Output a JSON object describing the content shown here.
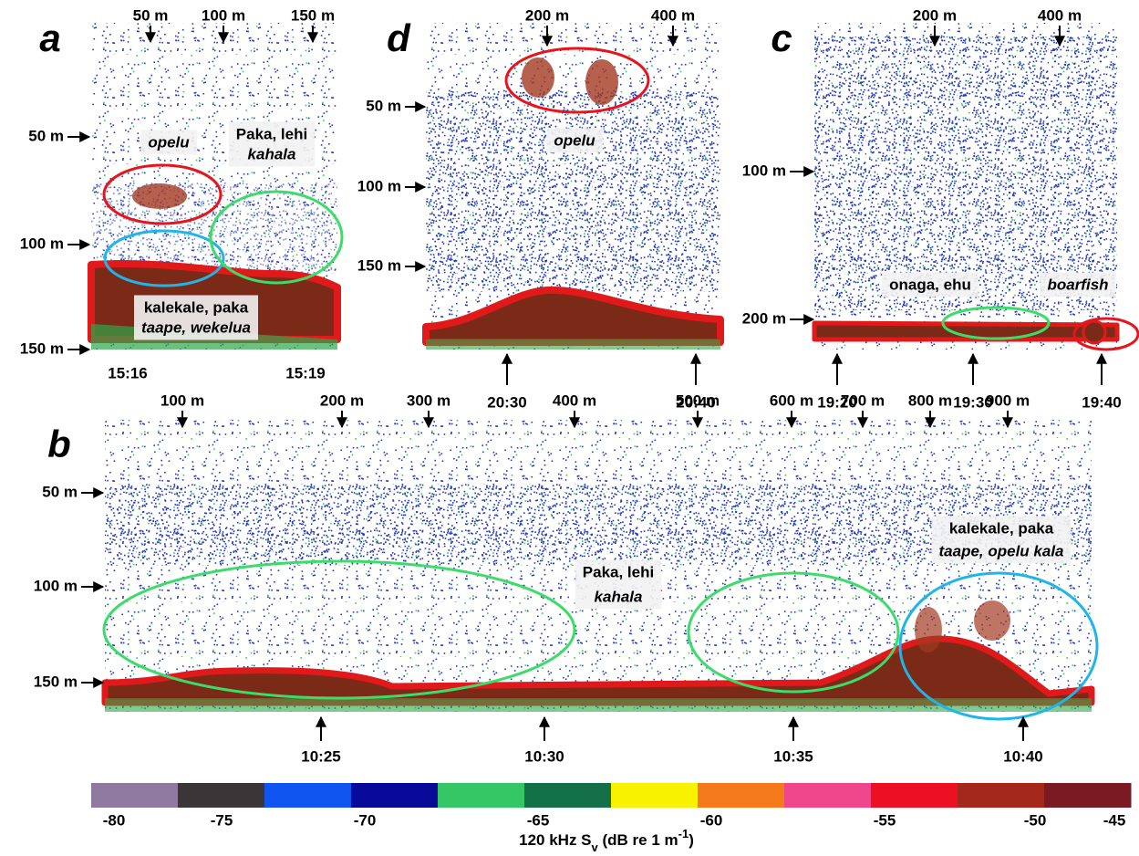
{
  "panels": [
    {
      "label": "a",
      "top_ticks": [
        "50 m",
        "100 m",
        "150 m"
      ],
      "depth_ticks": [
        "50 m",
        "100 m",
        "150 m"
      ],
      "time_ticks": [
        "15:16",
        "15:19"
      ],
      "annotations": [
        {
          "lines": [
            "opelu"
          ]
        },
        {
          "lines": [
            "Paka, lehi",
            "kahala"
          ]
        },
        {
          "lines": [
            "kalekale, paka",
            "taape, wekelua"
          ]
        }
      ]
    },
    {
      "label": "d",
      "top_ticks": [
        "200 m",
        "400 m"
      ],
      "depth_ticks": [
        "50 m",
        "100 m",
        "150 m"
      ],
      "time_ticks": [
        "20:30",
        "20:40"
      ],
      "annotations": [
        {
          "lines": [
            "opelu"
          ]
        }
      ]
    },
    {
      "label": "c",
      "top_ticks": [
        "200 m",
        "400 m"
      ],
      "depth_ticks": [
        "100 m",
        "200 m"
      ],
      "time_ticks": [
        "19:20",
        "19:30",
        "19:40"
      ],
      "annotations": [
        {
          "lines": [
            "onaga, ehu"
          ]
        },
        {
          "lines": [
            "boarfish"
          ]
        }
      ]
    },
    {
      "label": "b",
      "top_ticks": [
        "100 m",
        "200 m",
        "300 m",
        "400 m",
        "500 m",
        "600 m",
        "700 m",
        "800 m",
        "900 m"
      ],
      "depth_ticks": [
        "50 m",
        "100 m",
        "150 m"
      ],
      "time_ticks": [
        "10:25",
        "10:30",
        "10:35",
        "10:40"
      ],
      "annotations": [
        {
          "lines": [
            "Paka, lehi",
            "kahala"
          ]
        },
        {
          "lines": [
            "kalekale, paka",
            "taape, opelu kala"
          ]
        }
      ]
    }
  ],
  "colorbar": {
    "colors": [
      "#8e7aa0",
      "#3b3538",
      "#1055f0",
      "#0a0a9a",
      "#35c765",
      "#137048",
      "#f8f200",
      "#f57a1c",
      "#f0468c",
      "#ec1022",
      "#a4281c",
      "#7a1a22"
    ],
    "ticks": [
      "-80",
      "-75",
      "-70",
      "-65",
      "-60",
      "-55",
      "-50",
      "-45"
    ],
    "label": {
      "main": "120 kHz S",
      "sub": "v",
      "mid": " (dB re 1 m",
      "sup": "-1",
      "end": ")"
    }
  }
}
